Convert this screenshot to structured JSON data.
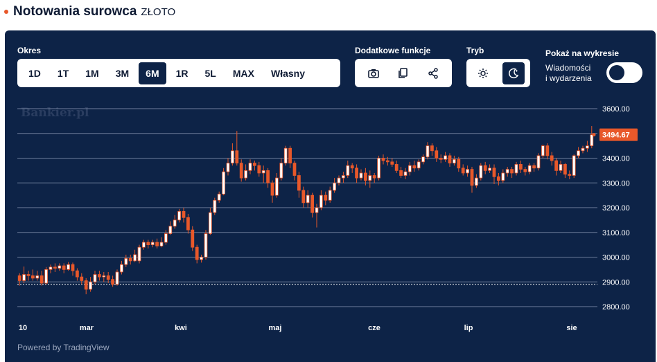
{
  "header": {
    "title": "Notowania surowca",
    "subtitle": "ZŁOTO"
  },
  "controls": {
    "period_label": "Okres",
    "periods": [
      "1D",
      "1T",
      "1M",
      "3M",
      "6M",
      "1R",
      "5L",
      "MAX",
      "Własny"
    ],
    "active_period": "6M",
    "extra_label": "Dodatkowe funkcje",
    "extra_icons": [
      "camera-icon",
      "copy-icon",
      "share-icon"
    ],
    "mode_label": "Tryb",
    "mode_icons": [
      "sun-icon",
      "moon-icon"
    ],
    "active_mode": "moon-icon",
    "show_label": "Pokaż na wykresie",
    "news_label_line1": "Wiadomości",
    "news_label_line2": "i wydarzenia",
    "toggle_on": true
  },
  "watermark": "Bankier.pl",
  "powered_by": "Powered by TradingView",
  "colors": {
    "panel": "#0d2347",
    "candle": "#e8582a",
    "grid": "#6e7e9c",
    "price_tag": "#e8582a"
  },
  "chart_data": {
    "type": "candlestick",
    "y_ticks": [
      "3600.00",
      "3500.00",
      "3400.00",
      "3300.00",
      "3200.00",
      "3100.00",
      "3000.00",
      "2900.00",
      "2800.00"
    ],
    "ylim": [
      2800,
      3600
    ],
    "x_ticks": [
      "10",
      "mar",
      "kwi",
      "maj",
      "cze",
      "lip",
      "sie"
    ],
    "last_price": "3494.67",
    "reference_level": 2890,
    "grid": true,
    "candles": [
      [
        2925,
        2905,
        2935,
        2885
      ],
      [
        2905,
        2930,
        2962,
        2895
      ],
      [
        2930,
        2925,
        2945,
        2905
      ],
      [
        2925,
        2915,
        2950,
        2905
      ],
      [
        2915,
        2925,
        2945,
        2905
      ],
      [
        2925,
        2895,
        2945,
        2885
      ],
      [
        2895,
        2950,
        2960,
        2890
      ],
      [
        2950,
        2960,
        2970,
        2935
      ],
      [
        2960,
        2955,
        2975,
        2940
      ],
      [
        2955,
        2965,
        2975,
        2945
      ],
      [
        2965,
        2950,
        2975,
        2935
      ],
      [
        2950,
        2970,
        2980,
        2945
      ],
      [
        2970,
        2945,
        2978,
        2925
      ],
      [
        2945,
        2920,
        2955,
        2905
      ],
      [
        2920,
        2905,
        2935,
        2890
      ],
      [
        2905,
        2870,
        2915,
        2850
      ],
      [
        2870,
        2900,
        2920,
        2860
      ],
      [
        2900,
        2930,
        2945,
        2890
      ],
      [
        2930,
        2920,
        2945,
        2905
      ],
      [
        2920,
        2925,
        2940,
        2900
      ],
      [
        2925,
        2910,
        2940,
        2895
      ],
      [
        2910,
        2890,
        2925,
        2880
      ],
      [
        2890,
        2940,
        2950,
        2885
      ],
      [
        2940,
        2970,
        2985,
        2930
      ],
      [
        2970,
        2995,
        3010,
        2960
      ],
      [
        2995,
        2985,
        3010,
        2970
      ],
      [
        2985,
        3010,
        3030,
        2980
      ],
      [
        2985,
        3040,
        3050,
        2975
      ],
      [
        3040,
        3060,
        3070,
        3030
      ],
      [
        3060,
        3050,
        3070,
        3035
      ],
      [
        3050,
        3060,
        3070,
        3040
      ],
      [
        3060,
        3045,
        3075,
        3035
      ],
      [
        3045,
        3060,
        3080,
        3040
      ],
      [
        3060,
        3095,
        3110,
        3050
      ],
      [
        3095,
        3125,
        3145,
        3090
      ],
      [
        3125,
        3150,
        3170,
        3115
      ],
      [
        3150,
        3185,
        3195,
        3140
      ],
      [
        3185,
        3160,
        3200,
        3140
      ],
      [
        3160,
        3110,
        3175,
        3095
      ],
      [
        3110,
        3040,
        3125,
        3025
      ],
      [
        3040,
        2990,
        3050,
        2975
      ],
      [
        2990,
        3000,
        3010,
        2978
      ],
      [
        3000,
        3095,
        3110,
        2990
      ],
      [
        3095,
        3180,
        3200,
        3090
      ],
      [
        3180,
        3230,
        3240,
        3170
      ],
      [
        3230,
        3255,
        3265,
        3220
      ],
      [
        3255,
        3345,
        3360,
        3250
      ],
      [
        3345,
        3380,
        3400,
        3330
      ],
      [
        3380,
        3430,
        3460,
        3370
      ],
      [
        3430,
        3380,
        3510,
        3370
      ],
      [
        3380,
        3320,
        3395,
        3305
      ],
      [
        3320,
        3350,
        3375,
        3310
      ],
      [
        3350,
        3380,
        3395,
        3335
      ],
      [
        3380,
        3370,
        3390,
        3350
      ],
      [
        3370,
        3340,
        3385,
        3325
      ],
      [
        3340,
        3350,
        3370,
        3300
      ],
      [
        3350,
        3300,
        3360,
        3280
      ],
      [
        3300,
        3250,
        3310,
        3220
      ],
      [
        3250,
        3320,
        3340,
        3240
      ],
      [
        3320,
        3380,
        3400,
        3310
      ],
      [
        3380,
        3440,
        3450,
        3370
      ],
      [
        3440,
        3380,
        3450,
        3360
      ],
      [
        3380,
        3330,
        3390,
        3310
      ],
      [
        3330,
        3270,
        3345,
        3240
      ],
      [
        3270,
        3220,
        3285,
        3200
      ],
      [
        3220,
        3250,
        3270,
        3200
      ],
      [
        3250,
        3180,
        3260,
        3160
      ],
      [
        3180,
        3200,
        3215,
        3120
      ],
      [
        3200,
        3250,
        3270,
        3190
      ],
      [
        3250,
        3230,
        3265,
        3210
      ],
      [
        3230,
        3270,
        3285,
        3220
      ],
      [
        3270,
        3300,
        3320,
        3260
      ],
      [
        3300,
        3320,
        3330,
        3290
      ],
      [
        3320,
        3330,
        3345,
        3300
      ],
      [
        3330,
        3370,
        3390,
        3320
      ],
      [
        3370,
        3360,
        3380,
        3340
      ],
      [
        3360,
        3320,
        3375,
        3300
      ],
      [
        3320,
        3340,
        3355,
        3310
      ],
      [
        3340,
        3310,
        3360,
        3290
      ],
      [
        3310,
        3330,
        3350,
        3280
      ],
      [
        3330,
        3320,
        3340,
        3300
      ],
      [
        3320,
        3400,
        3410,
        3310
      ],
      [
        3400,
        3390,
        3415,
        3375
      ],
      [
        3390,
        3385,
        3405,
        3370
      ],
      [
        3385,
        3375,
        3400,
        3365
      ],
      [
        3375,
        3350,
        3390,
        3340
      ],
      [
        3350,
        3330,
        3365,
        3320
      ],
      [
        3330,
        3345,
        3360,
        3315
      ],
      [
        3345,
        3370,
        3385,
        3330
      ],
      [
        3370,
        3360,
        3390,
        3345
      ],
      [
        3360,
        3385,
        3395,
        3350
      ],
      [
        3385,
        3405,
        3415,
        3375
      ],
      [
        3405,
        3450,
        3465,
        3395
      ],
      [
        3450,
        3430,
        3460,
        3410
      ],
      [
        3430,
        3400,
        3445,
        3385
      ],
      [
        3400,
        3395,
        3415,
        3380
      ],
      [
        3395,
        3410,
        3425,
        3385
      ],
      [
        3410,
        3380,
        3420,
        3365
      ],
      [
        3380,
        3395,
        3410,
        3370
      ],
      [
        3395,
        3360,
        3405,
        3345
      ],
      [
        3360,
        3340,
        3375,
        3330
      ],
      [
        3340,
        3355,
        3370,
        3325
      ],
      [
        3355,
        3290,
        3365,
        3260
      ],
      [
        3290,
        3320,
        3335,
        3280
      ],
      [
        3320,
        3370,
        3380,
        3310
      ],
      [
        3370,
        3350,
        3385,
        3335
      ],
      [
        3350,
        3360,
        3375,
        3340
      ],
      [
        3360,
        3325,
        3375,
        3295
      ],
      [
        3325,
        3310,
        3340,
        3290
      ],
      [
        3310,
        3340,
        3355,
        3300
      ],
      [
        3340,
        3355,
        3365,
        3325
      ],
      [
        3355,
        3340,
        3365,
        3320
      ],
      [
        3340,
        3375,
        3385,
        3330
      ],
      [
        3375,
        3355,
        3390,
        3340
      ],
      [
        3355,
        3345,
        3365,
        3330
      ],
      [
        3345,
        3370,
        3380,
        3335
      ],
      [
        3370,
        3360,
        3380,
        3345
      ],
      [
        3360,
        3410,
        3420,
        3350
      ],
      [
        3410,
        3450,
        3455,
        3400
      ],
      [
        3450,
        3410,
        3460,
        3395
      ],
      [
        3410,
        3390,
        3425,
        3370
      ],
      [
        3390,
        3350,
        3400,
        3330
      ],
      [
        3350,
        3375,
        3390,
        3340
      ],
      [
        3375,
        3335,
        3380,
        3320
      ],
      [
        3335,
        3330,
        3350,
        3315
      ],
      [
        3330,
        3410,
        3415,
        3320
      ],
      [
        3410,
        3430,
        3445,
        3400
      ],
      [
        3430,
        3440,
        3450,
        3420
      ],
      [
        3440,
        3450,
        3470,
        3425
      ],
      [
        3450,
        3494.67,
        3530,
        3440
      ]
    ]
  }
}
